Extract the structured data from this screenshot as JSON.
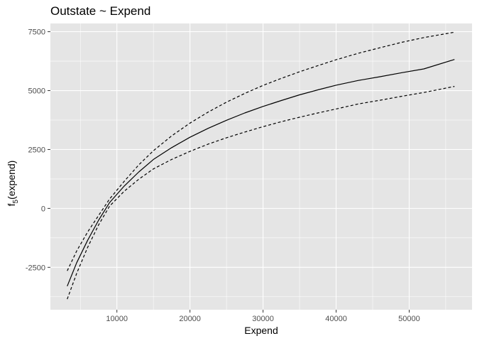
{
  "chart_data": {
    "type": "line",
    "title": "Outstate ~ Expend",
    "xlabel": "Expend",
    "ylabel": "f5(expend)",
    "ylabel_parts": {
      "base": "f",
      "sub": "5",
      "rest": "(expend)"
    },
    "xlim": [
      900,
      58600
    ],
    "ylim": [
      -4300,
      7850
    ],
    "x_ticks": [
      10000,
      20000,
      30000,
      40000,
      50000
    ],
    "x_tick_labels": [
      "10000",
      "20000",
      "30000",
      "40000",
      "50000"
    ],
    "y_ticks": [
      -2500,
      0,
      2500,
      5000,
      7500
    ],
    "y_tick_labels": [
      "-2500",
      "0",
      "2500",
      "5000",
      "7500"
    ],
    "grid": true,
    "background": "#e5e5e5",
    "series": [
      {
        "role": "fit",
        "line_style": "solid",
        "color": "#000000",
        "x": [
          3200,
          4500,
          6000,
          7500,
          9000,
          11000,
          13000,
          15000,
          17500,
          20000,
          22500,
          25000,
          27500,
          30000,
          32500,
          35000,
          37500,
          40000,
          43000,
          46000,
          49000,
          52000,
          56200
        ],
        "y": [
          -3300,
          -2300,
          -1350,
          -500,
          250,
          950,
          1550,
          2080,
          2580,
          3020,
          3400,
          3740,
          4050,
          4330,
          4580,
          4820,
          5030,
          5230,
          5430,
          5590,
          5760,
          5920,
          6320
        ]
      },
      {
        "role": "upper",
        "line_style": "dashed",
        "color": "#000000",
        "x": [
          3200,
          4500,
          6000,
          7500,
          9000,
          11000,
          13000,
          15000,
          17500,
          20000,
          22500,
          25000,
          27500,
          30000,
          32500,
          35000,
          37500,
          40000,
          43000,
          46000,
          49000,
          52000,
          56200
        ],
        "y": [
          -2650,
          -1800,
          -1000,
          -300,
          400,
          1150,
          1850,
          2450,
          3080,
          3620,
          4090,
          4510,
          4880,
          5220,
          5520,
          5800,
          6060,
          6310,
          6580,
          6820,
          7050,
          7250,
          7480
        ]
      },
      {
        "role": "lower",
        "line_style": "dashed",
        "color": "#000000",
        "x": [
          3200,
          4500,
          6000,
          7500,
          9000,
          11000,
          13000,
          15000,
          17500,
          20000,
          22500,
          25000,
          27500,
          30000,
          32500,
          35000,
          37500,
          40000,
          43000,
          46000,
          49000,
          52000,
          56200
        ],
        "y": [
          -3850,
          -2750,
          -1650,
          -700,
          100,
          730,
          1240,
          1680,
          2080,
          2420,
          2730,
          3000,
          3240,
          3470,
          3680,
          3870,
          4050,
          4220,
          4430,
          4590,
          4760,
          4920,
          5180
        ]
      }
    ]
  }
}
